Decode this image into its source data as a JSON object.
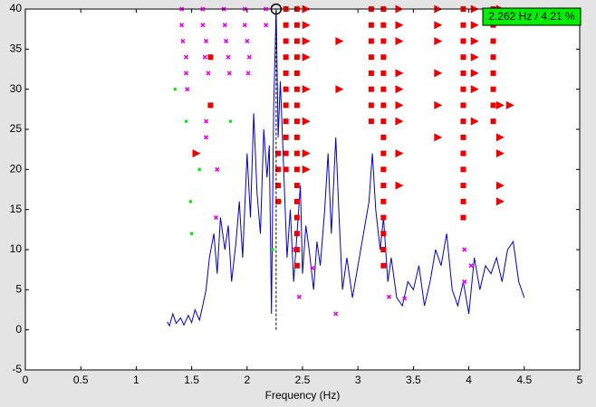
{
  "chart_data": {
    "type": "line",
    "xlabel": "Frequency (Hz)",
    "xlim": [
      0,
      5
    ],
    "ylim": [
      -5,
      40
    ],
    "xticks": [
      0,
      0.5,
      1,
      1.5,
      2,
      2.5,
      3,
      3.5,
      4,
      4.5,
      5
    ],
    "yticks": [
      -5,
      0,
      5,
      10,
      15,
      20,
      25,
      30,
      35,
      40
    ],
    "grid": false,
    "series": [
      {
        "marker": "line",
        "color": "#0000cc",
        "x": [
          1.28,
          1.3,
          1.33,
          1.36,
          1.4,
          1.43,
          1.47,
          1.5,
          1.53,
          1.57,
          1.6,
          1.63,
          1.66,
          1.7,
          1.73,
          1.76,
          1.8,
          1.83,
          1.86,
          1.9,
          1.93,
          1.96,
          2.0,
          2.03,
          2.06,
          2.09,
          2.12,
          2.15,
          2.18,
          2.2,
          2.22,
          2.24,
          2.262,
          2.28,
          2.3,
          2.33,
          2.36,
          2.39,
          2.42,
          2.45,
          2.48,
          2.5,
          2.53,
          2.56,
          2.6,
          2.63,
          2.66,
          2.7,
          2.73,
          2.76,
          2.8,
          2.83,
          2.86,
          2.9,
          2.95,
          3.0,
          3.05,
          3.1,
          3.13,
          3.16,
          3.2,
          3.23,
          3.27,
          3.3,
          3.35,
          3.4,
          3.45,
          3.5,
          3.55,
          3.6,
          3.65,
          3.7,
          3.75,
          3.8,
          3.85,
          3.9,
          3.95,
          4.0,
          4.05,
          4.1,
          4.15,
          4.2,
          4.25,
          4.3,
          4.35,
          4.4,
          4.45,
          4.5
        ],
        "y": [
          1,
          0.5,
          2,
          0.8,
          1.5,
          0.6,
          1.8,
          0.9,
          2.5,
          1.2,
          3,
          5,
          9,
          12,
          7,
          14,
          10,
          13,
          6,
          11,
          16,
          9,
          22,
          14,
          27,
          17,
          12,
          25,
          19,
          23,
          2,
          28,
          40,
          24,
          31,
          20,
          9,
          15,
          6,
          12,
          18,
          7,
          13,
          10,
          5,
          11,
          8,
          15,
          22,
          12,
          24,
          14,
          5,
          9,
          4,
          8,
          12,
          16,
          22,
          15,
          10,
          14,
          6,
          9,
          4,
          3,
          6,
          5,
          8,
          3,
          6,
          10,
          8,
          12,
          5,
          3,
          6,
          2,
          9,
          5,
          8,
          7,
          9,
          6,
          10,
          11,
          6,
          4
        ]
      },
      {
        "marker": "point",
        "color": "#00ee00",
        "x": [
          1.35,
          1.45,
          1.85,
          1.57,
          1.49,
          1.5,
          2.3,
          2.23
        ],
        "y": [
          30,
          26,
          26,
          20,
          16,
          12,
          16,
          10
        ]
      },
      {
        "marker": "x",
        "color": "#ee00ee",
        "x": [
          1.41,
          1.41,
          1.42,
          1.45,
          1.45,
          1.46,
          1.6,
          1.6,
          1.63,
          1.62,
          1.65,
          1.79,
          1.8,
          1.81,
          1.83,
          1.84,
          1.98,
          1.98,
          2.0,
          2.02,
          2.01,
          2.17,
          2.17,
          1.63,
          1.63,
          1.73,
          1.72,
          2.59,
          2.47,
          2.8,
          3.28,
          3.42,
          3.96,
          3.96,
          4.02,
          2.43
        ],
        "y": [
          40,
          38,
          36,
          34,
          32,
          30,
          40,
          38,
          36,
          34,
          32,
          40,
          38,
          36,
          34,
          32,
          40,
          38,
          36,
          34,
          32,
          40,
          38,
          26,
          24,
          20,
          14,
          7.7,
          4.1,
          2,
          4.1,
          3.9,
          10,
          6,
          8,
          10
        ]
      },
      {
        "marker": "square",
        "color": "#ee0000",
        "x": [
          2.35,
          2.35,
          2.35,
          2.35,
          2.35,
          2.35,
          2.35,
          2.35,
          2.35,
          2.35,
          2.35,
          2.45,
          2.45,
          2.45,
          2.45,
          2.45,
          2.45,
          2.45,
          2.45,
          2.45,
          2.45,
          2.45,
          2.45,
          2.45,
          2.45,
          2.45,
          2.45,
          2.45,
          3.12,
          3.12,
          3.12,
          3.12,
          3.12,
          3.12,
          3.12,
          3.12,
          3.23,
          3.23,
          3.23,
          3.23,
          3.23,
          3.23,
          3.23,
          3.23,
          3.23,
          3.23,
          3.23,
          3.23,
          3.23,
          3.23,
          3.23,
          3.23,
          3.23,
          3.95,
          3.95,
          3.95,
          3.95,
          3.95,
          3.95,
          3.95,
          3.95,
          3.95,
          3.95,
          3.95,
          3.95,
          3.95,
          3.95,
          4.22,
          4.22,
          4.22,
          4.22,
          4.22,
          4.22,
          4.22,
          4.22,
          1.67,
          1.67,
          2.28,
          2.28,
          2.28,
          2.28
        ],
        "y": [
          40,
          38,
          36,
          34,
          32,
          30,
          28,
          26,
          24,
          22,
          20,
          40,
          38,
          36,
          34,
          32,
          30,
          28,
          26,
          24,
          22,
          20,
          18,
          16,
          14,
          12,
          10,
          8,
          40,
          38,
          36,
          34,
          32,
          30,
          28,
          26,
          40,
          38,
          36,
          34,
          32,
          30,
          28,
          26,
          24,
          22,
          20,
          18,
          16,
          14,
          12,
          10,
          8,
          40,
          38,
          36,
          34,
          32,
          30,
          28,
          26,
          24,
          22,
          20,
          18,
          16,
          14,
          40,
          38,
          36,
          34,
          32,
          30,
          28,
          26,
          34,
          28,
          22,
          20,
          18,
          16
        ]
      },
      {
        "marker": "triangle",
        "color": "#ee0000",
        "x": [
          2.53,
          2.53,
          2.53,
          2.53,
          2.53,
          2.53,
          2.53,
          2.53,
          2.83,
          2.83,
          3.37,
          3.37,
          3.37,
          3.37,
          3.37,
          3.37,
          3.37,
          3.37,
          3.37,
          3.72,
          3.72,
          3.72,
          3.72,
          3.72,
          3.72,
          4.05,
          4.05,
          4.05,
          4.05,
          4.05,
          4.05,
          4.05,
          4.28,
          4.28,
          4.28,
          4.28,
          4.28,
          4.28,
          1.54,
          4.37
        ],
        "y": [
          40,
          38,
          36,
          34,
          30,
          26,
          22,
          20,
          36,
          30,
          40,
          38,
          36,
          32,
          30,
          28,
          26,
          22,
          18,
          40,
          38,
          36,
          32,
          28,
          24,
          40,
          38,
          36,
          34,
          32,
          30,
          26,
          40,
          28,
          24,
          22,
          18,
          16,
          22,
          28
        ]
      }
    ],
    "cursor": {
      "x": 2.262,
      "y": 40,
      "label": "2.262 Hz / 4.21 %"
    }
  }
}
